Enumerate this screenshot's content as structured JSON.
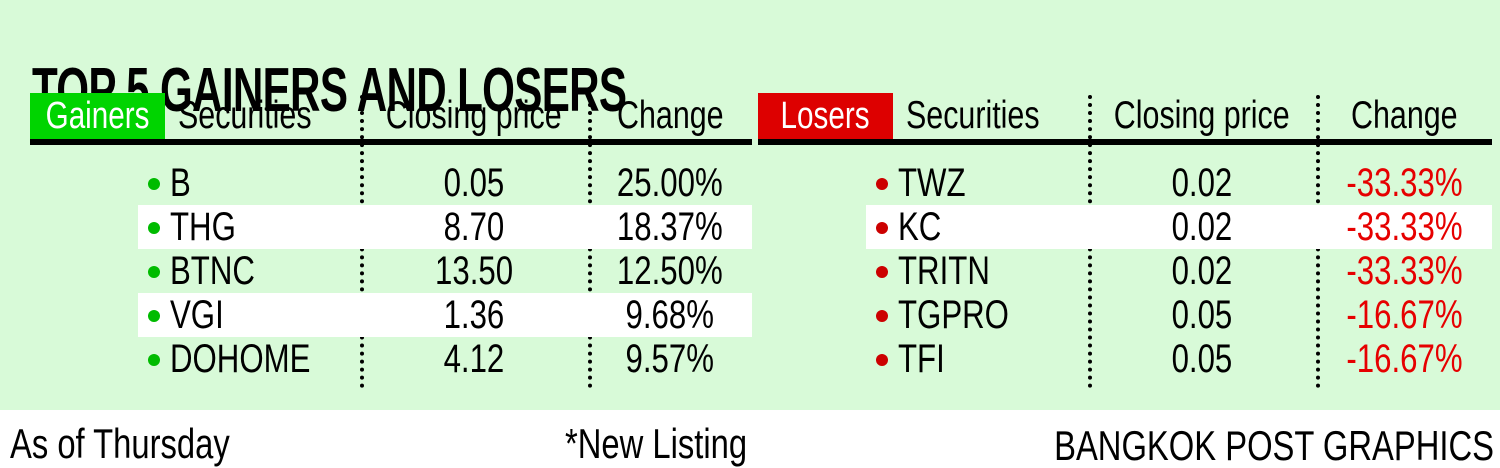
{
  "title": "TOP 5 GAINERS AND LOSERS",
  "gainers": {
    "label": "Gainers",
    "columns": {
      "securities": "Securities",
      "closing_price": "Closing price",
      "change": "Change"
    },
    "rows": [
      {
        "name": "B",
        "price": "0.05",
        "change": "25.00%"
      },
      {
        "name": "THG",
        "price": "8.70",
        "change": "18.37%"
      },
      {
        "name": "BTNC",
        "price": "13.50",
        "change": "12.50%"
      },
      {
        "name": "VGI",
        "price": "1.36",
        "change": "9.68%"
      },
      {
        "name": "DOHOME",
        "price": "4.12",
        "change": "9.57%"
      }
    ]
  },
  "losers": {
    "label": "Losers",
    "columns": {
      "securities": "Securities",
      "closing_price": "Closing price",
      "change": "Change"
    },
    "rows": [
      {
        "name": "TWZ",
        "price": "0.02",
        "change": "-33.33%"
      },
      {
        "name": "KC",
        "price": "0.02",
        "change": "-33.33%"
      },
      {
        "name": "TRITN",
        "price": "0.02",
        "change": "-33.33%"
      },
      {
        "name": "TGPRO",
        "price": "0.05",
        "change": "-16.67%"
      },
      {
        "name": "TFI",
        "price": "0.05",
        "change": "-16.67%"
      }
    ]
  },
  "footer": {
    "as_of": "As of Thursday",
    "note": "*New Listing",
    "credit": "BANGKOK POST GRAPHICS"
  },
  "colors": {
    "panel_green": "#d8fad8",
    "gainer_green": "#00d400",
    "gainer_bullet_green": "#00bb00",
    "loser_red": "#dd0000",
    "loser_bullet_red": "#cc0000",
    "change_down_red": "#e60000",
    "stripe_white": "#ffffff",
    "text_black": "#000000"
  },
  "chart_data": [
    {
      "type": "table",
      "title": "TOP 5 GAINERS AND LOSERS",
      "group": "Gainers",
      "columns": [
        "Securities",
        "Closing price",
        "Change"
      ],
      "rows": [
        [
          "B",
          0.05,
          "25.00%"
        ],
        [
          "THG",
          8.7,
          "18.37%"
        ],
        [
          "BTNC",
          13.5,
          "12.50%"
        ],
        [
          "VGI",
          1.36,
          "9.68%"
        ],
        [
          "DOHOME",
          4.12,
          "9.57%"
        ]
      ]
    },
    {
      "type": "table",
      "title": "TOP 5 GAINERS AND LOSERS",
      "group": "Losers",
      "columns": [
        "Securities",
        "Closing price",
        "Change"
      ],
      "rows": [
        [
          "TWZ",
          0.02,
          "-33.33%"
        ],
        [
          "KC",
          0.02,
          "-33.33%"
        ],
        [
          "TRITN",
          0.02,
          "-33.33%"
        ],
        [
          "TGPRO",
          0.05,
          "-16.67%"
        ],
        [
          "TFI",
          0.05,
          "-16.67%"
        ]
      ]
    }
  ]
}
